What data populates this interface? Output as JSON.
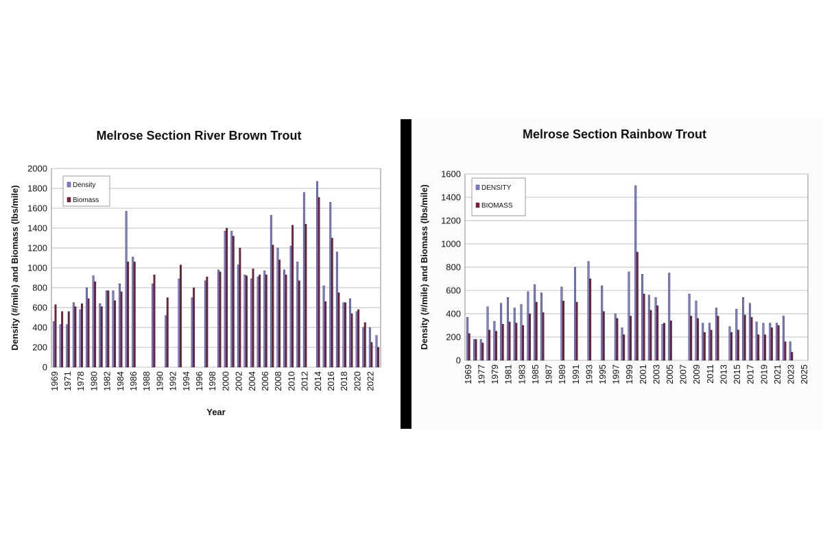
{
  "chart_data": [
    {
      "type": "bar",
      "title": "Melrose Section River Brown Trout",
      "xlabel": "Year",
      "ylabel": "Density (#/mile) and Biomass (lbs/mile)",
      "ylim": [
        0,
        2000
      ],
      "yticks": [
        0,
        200,
        400,
        600,
        800,
        1000,
        1200,
        1400,
        1600,
        1800,
        2000
      ],
      "grid": true,
      "legend": "top-left",
      "categories": [
        "1969",
        "1970",
        "1971",
        "1977",
        "1978",
        "1979",
        "1980",
        "1981",
        "1982",
        "1983",
        "1984",
        "1985",
        "1986",
        "1987",
        "1988",
        "1989",
        "1990",
        "1991",
        "1992",
        "1993",
        "1994",
        "1995",
        "1996",
        "1997",
        "1998",
        "1999",
        "2000",
        "2001",
        "2002",
        "2003",
        "2004",
        "2005",
        "2006",
        "2007",
        "2008",
        "2009",
        "2010",
        "2011",
        "2012",
        "2013",
        "2014",
        "2015",
        "2016",
        "2017",
        "2018",
        "2019",
        "2020",
        "2021",
        "2022",
        "2023"
      ],
      "tick_labels": [
        "1969",
        "1971",
        "1978",
        "1980",
        "1982",
        "1984",
        "1986",
        "1988",
        "1990",
        "1992",
        "1994",
        "1996",
        "1998",
        "2000",
        "2002",
        "2004",
        "2006",
        "2008",
        "2010",
        "2012",
        "2014",
        "2016",
        "2018",
        "2020",
        "2022"
      ],
      "series": [
        {
          "name": "Density",
          "color": "#7f7fd0",
          "values": [
            460,
            430,
            430,
            650,
            580,
            800,
            920,
            640,
            770,
            770,
            840,
            1570,
            1110,
            null,
            null,
            840,
            null,
            520,
            null,
            890,
            null,
            700,
            null,
            870,
            null,
            980,
            1370,
            1370,
            1030,
            930,
            890,
            910,
            970,
            1530,
            1200,
            980,
            1220,
            1060,
            1760,
            null,
            1870,
            820,
            1660,
            1160,
            650,
            690,
            560,
            400,
            400,
            320
          ]
        },
        {
          "name": "Biomass",
          "color": "#7a1f3d",
          "values": [
            630,
            560,
            560,
            610,
            640,
            690,
            860,
            610,
            770,
            670,
            760,
            1060,
            1060,
            null,
            null,
            930,
            null,
            700,
            null,
            1030,
            null,
            800,
            null,
            910,
            null,
            960,
            1400,
            1320,
            1200,
            920,
            990,
            930,
            930,
            1230,
            1080,
            930,
            1430,
            870,
            1440,
            null,
            1710,
            660,
            1300,
            750,
            650,
            540,
            580,
            450,
            250,
            200
          ]
        }
      ]
    },
    {
      "type": "bar",
      "title": "Melrose Section Rainbow Trout",
      "xlabel": "",
      "ylabel": "Density (#/mile) and Biomass (lbs/mile)",
      "ylim": [
        0,
        1600
      ],
      "yticks": [
        0,
        200,
        400,
        600,
        800,
        1000,
        1200,
        1400,
        1600
      ],
      "grid": true,
      "legend": "top-left",
      "categories": [
        "1969",
        "1970",
        "1977",
        "1978",
        "1979",
        "1980",
        "1981",
        "1982",
        "1983",
        "1984",
        "1985",
        "1986",
        "1987",
        "1988",
        "1989",
        "1990",
        "1991",
        "1992",
        "1993",
        "1994",
        "1995",
        "1996",
        "1997",
        "1998",
        "1999",
        "2000",
        "2001",
        "2002",
        "2003",
        "2004",
        "2005",
        "2006",
        "2007",
        "2008",
        "2009",
        "2010",
        "2011",
        "2012",
        "2013",
        "2014",
        "2015",
        "2016",
        "2017",
        "2018",
        "2019",
        "2020",
        "2021",
        "2022",
        "2023",
        "2024",
        "2025"
      ],
      "tick_labels": [
        "1969",
        "1977",
        "1979",
        "1981",
        "1983",
        "1985",
        "1987",
        "1989",
        "1991",
        "1993",
        "1995",
        "1997",
        "1999",
        "2001",
        "2003",
        "2005",
        "2007",
        "2009",
        "2011",
        "2013",
        "2015",
        "2017",
        "2019",
        "2021",
        "2023",
        "2025"
      ],
      "series": [
        {
          "name": "DENSITY",
          "color": "#7f7fd0",
          "values": [
            370,
            180,
            180,
            460,
            335,
            490,
            540,
            450,
            480,
            590,
            650,
            580,
            null,
            null,
            630,
            null,
            800,
            null,
            850,
            null,
            640,
            null,
            400,
            280,
            760,
            1500,
            740,
            560,
            540,
            310,
            750,
            null,
            null,
            570,
            510,
            320,
            320,
            450,
            null,
            290,
            440,
            540,
            490,
            330,
            320,
            320,
            320,
            380,
            160,
            null,
            null
          ]
        },
        {
          "name": "BIOMASS",
          "color": "#7a1f3d",
          "values": [
            230,
            180,
            150,
            260,
            250,
            310,
            330,
            320,
            300,
            400,
            500,
            410,
            null,
            null,
            510,
            null,
            500,
            null,
            700,
            null,
            420,
            null,
            360,
            220,
            380,
            930,
            570,
            430,
            470,
            320,
            340,
            null,
            null,
            380,
            360,
            240,
            260,
            380,
            null,
            240,
            260,
            390,
            370,
            220,
            220,
            280,
            300,
            160,
            70,
            null,
            null
          ]
        }
      ]
    }
  ]
}
